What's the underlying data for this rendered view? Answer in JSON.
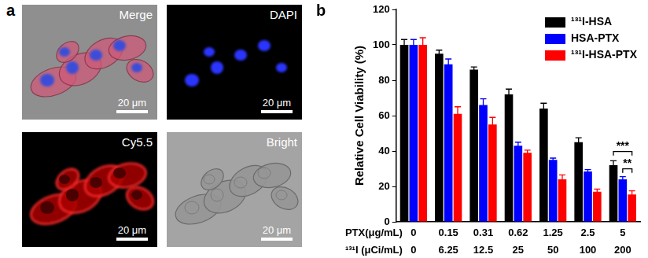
{
  "figure": {
    "panel_labels": [
      "a",
      "b"
    ]
  },
  "panel_a": {
    "images": [
      {
        "label": "Merge",
        "scale_bar": "20 μm"
      },
      {
        "label": "DAPI",
        "scale_bar": "20 μm"
      },
      {
        "label": "Cy5.5",
        "scale_bar": "20 μm"
      },
      {
        "label": "Bright",
        "scale_bar": "20 μm"
      }
    ]
  },
  "chart_data": {
    "type": "bar",
    "y_label": "Relative Cell Viability (%)",
    "category_rows": [
      "PTX(μg/mL)",
      "¹³¹I (μCi/mL)"
    ],
    "categories": [
      [
        "0",
        "0"
      ],
      [
        "0.15",
        "6.25"
      ],
      [
        "0.31",
        "12.5"
      ],
      [
        "0.62",
        "25"
      ],
      [
        "1.25",
        "50"
      ],
      [
        "2.5",
        "100"
      ],
      [
        "5",
        "200"
      ]
    ],
    "series": [
      {
        "name": "¹³¹I-HSA",
        "color": "#000000",
        "values": [
          100,
          95,
          86,
          72,
          64,
          45,
          32
        ],
        "errors": [
          3,
          2,
          1.5,
          3,
          3,
          2.5,
          2.5
        ]
      },
      {
        "name": "HSA-PTX",
        "color": "#0000ff",
        "values": [
          100,
          89,
          66,
          43,
          35,
          28.5,
          24
        ],
        "errors": [
          3,
          3,
          3.5,
          2,
          1,
          1,
          1.5
        ]
      },
      {
        "name": "¹³¹I-HSA-PTX",
        "color": "#ff0000",
        "values": [
          100,
          61,
          55,
          39,
          24,
          17,
          15.5
        ],
        "errors": [
          4,
          4,
          4,
          1.5,
          2.5,
          1.5,
          2
        ]
      }
    ],
    "ylim": [
      0,
      120
    ],
    "yticks": [
      0,
      20,
      40,
      60,
      80,
      100,
      120
    ],
    "grid": false,
    "legend": "top-right",
    "annotations": [
      {
        "text": "***",
        "category": "5",
        "from": "¹³¹I-HSA",
        "to": "¹³¹I-HSA-PTX"
      },
      {
        "text": "**",
        "category": "5",
        "from": "HSA-PTX",
        "to": "¹³¹I-HSA-PTX"
      }
    ]
  }
}
